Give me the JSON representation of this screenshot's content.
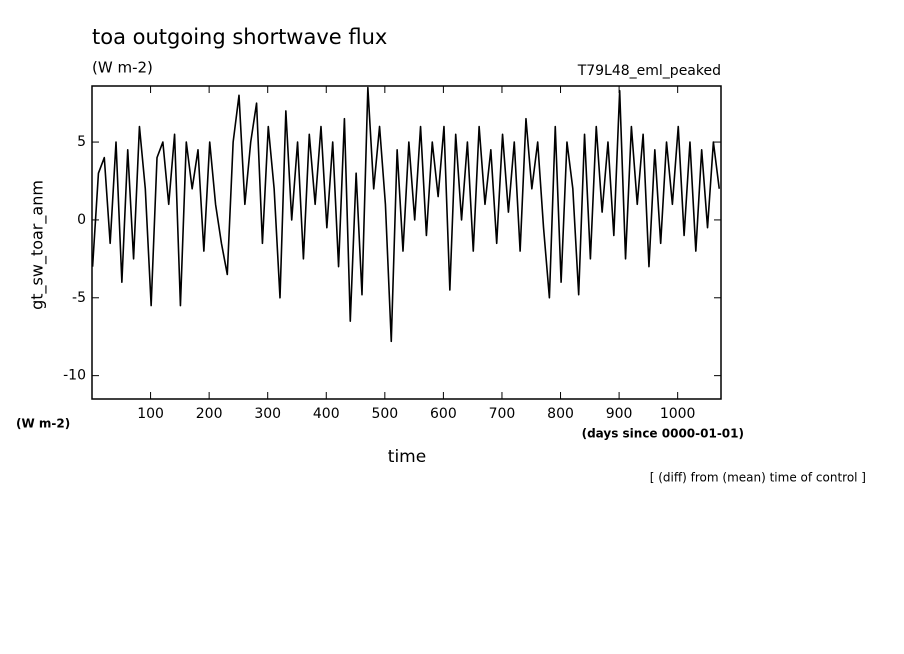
{
  "chart_data": {
    "type": "line",
    "title": "toa outgoing shortwave flux",
    "subtitle": "(W m-2)",
    "run_label": "T79L48_eml_peaked",
    "y_label": "gt_sw_toar_anm",
    "y_unit": "(W m-2)",
    "x_label": "time",
    "x_unit": "(days since 0000-01-01)",
    "note": "[ (diff) from (mean) time of control ]",
    "color": "#000000",
    "x": [
      1,
      11,
      21,
      31,
      41,
      51,
      61,
      71,
      81,
      91,
      101,
      111,
      121,
      131,
      141,
      151,
      161,
      171,
      181,
      191,
      201,
      211,
      221,
      231,
      241,
      251,
      261,
      271,
      281,
      291,
      301,
      311,
      321,
      331,
      341,
      351,
      361,
      371,
      381,
      391,
      401,
      411,
      421,
      431,
      441,
      451,
      461,
      471,
      481,
      491,
      501,
      511,
      521,
      531,
      541,
      551,
      561,
      571,
      581,
      591,
      601,
      611,
      621,
      631,
      641,
      651,
      661,
      671,
      681,
      691,
      701,
      711,
      721,
      731,
      741,
      751,
      761,
      771,
      781,
      791,
      801,
      811,
      821,
      831,
      841,
      851,
      861,
      871,
      881,
      891,
      901,
      911,
      921,
      931,
      941,
      951,
      961,
      971,
      981,
      991,
      1001,
      1011,
      1021,
      1031,
      1041,
      1051,
      1061,
      1071
    ],
    "values": [
      -3,
      3,
      4,
      -1.5,
      5,
      -4,
      4.5,
      -2.5,
      6,
      2,
      -5.5,
      4,
      5,
      1,
      5.5,
      -5.5,
      5,
      2,
      4.5,
      -2,
      5,
      1,
      -1.5,
      -3.5,
      5,
      8,
      1,
      5,
      7.5,
      -1.5,
      6,
      2,
      -5,
      7,
      0,
      5,
      -2.5,
      5.5,
      1,
      6,
      -0.5,
      5,
      -3,
      6.5,
      -6.5,
      3,
      -4.8,
      8.5,
      2,
      6,
      1,
      -7.8,
      4.5,
      -2,
      5,
      0,
      6,
      -1,
      5,
      1.5,
      6,
      -4.5,
      5.5,
      0,
      5,
      -2,
      6,
      1,
      4.5,
      -1.5,
      5.5,
      0.5,
      5,
      -2,
      6.5,
      2,
      5,
      -0.5,
      -5,
      6,
      -4,
      5,
      2,
      -4.8,
      5.5,
      -2.5,
      6,
      0.5,
      5,
      -1,
      8.3,
      -2.5,
      6,
      1,
      5.5,
      -3,
      4.5,
      -1.5,
      5,
      1,
      6,
      -1,
      5,
      -2,
      4.5,
      -0.5,
      5,
      2
    ],
    "xlim": [
      0,
      1074
    ],
    "ylim": [
      -11.5,
      8.6
    ],
    "xticks": [
      100,
      200,
      300,
      400,
      500,
      600,
      700,
      800,
      900,
      1000
    ],
    "yticks": [
      -10,
      -5,
      0,
      5
    ]
  }
}
